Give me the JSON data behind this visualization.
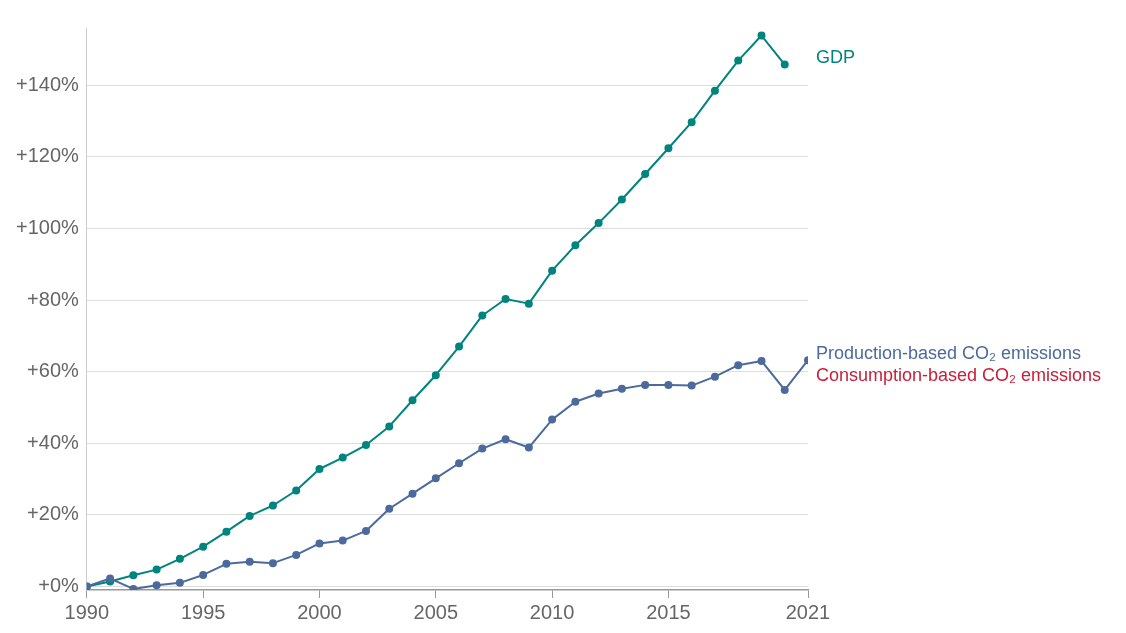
{
  "chart_data": {
    "type": "line",
    "x": [
      1990,
      1991,
      1992,
      1993,
      1994,
      1995,
      1996,
      1997,
      1998,
      1999,
      2000,
      2001,
      2002,
      2003,
      2004,
      2005,
      2006,
      2007,
      2008,
      2009,
      2010,
      2011,
      2012,
      2013,
      2014,
      2015,
      2016,
      2017,
      2018,
      2019,
      2020,
      2021
    ],
    "series": [
      {
        "name": "GDP",
        "color": "#00847e",
        "values": [
          0,
          1.4,
          3.1,
          4.7,
          7.7,
          11.1,
          15.3,
          19.7,
          22.6,
          26.8,
          32.8,
          36.0,
          39.5,
          44.7,
          52.0,
          59.0,
          67.0,
          75.7,
          80.3,
          79.0,
          88.2,
          95.3,
          101.5,
          108.1,
          115.2,
          122.4,
          129.7,
          138.5,
          146.9,
          153.9,
          145.8,
          null
        ]
      },
      {
        "name": "Production-based CO₂ emissions",
        "color": "#4c6a9c",
        "values": [
          0,
          2.2,
          -0.7,
          0.3,
          1.0,
          3.2,
          6.3,
          6.9,
          6.5,
          8.8,
          12.0,
          12.8,
          15.5,
          21.7,
          25.9,
          30.2,
          34.4,
          38.5,
          41.1,
          38.8,
          46.6,
          51.6,
          53.9,
          55.2,
          56.3,
          56.3,
          56.1,
          58.6,
          61.8,
          63.0,
          54.9,
          63.2
        ]
      },
      {
        "name": "Consumption-based CO₂ emissions",
        "color": "#c8203a",
        "values": [
          null,
          null,
          null,
          null,
          null,
          null,
          null,
          null,
          null,
          null,
          null,
          null,
          null,
          null,
          null,
          null,
          null,
          null,
          null,
          null,
          null,
          null,
          null,
          null,
          null,
          null,
          null,
          null,
          null,
          null,
          null,
          null
        ]
      }
    ],
    "xlim": [
      1990,
      2021
    ],
    "xticks": [
      1990,
      1995,
      2000,
      2005,
      2010,
      2015,
      2021
    ],
    "ylim": [
      -1,
      156
    ],
    "yticks": [
      {
        "value": 0,
        "label": "+0%"
      },
      {
        "value": 20,
        "label": "+20%"
      },
      {
        "value": 40,
        "label": "+40%"
      },
      {
        "value": 60,
        "label": "+60%"
      },
      {
        "value": 80,
        "label": "+80%"
      },
      {
        "value": 100,
        "label": "+100%"
      },
      {
        "value": 120,
        "label": "+120%"
      },
      {
        "value": 140,
        "label": "+140%"
      }
    ],
    "grid": "y",
    "legend": "right",
    "marker": "circle",
    "line_style": "solid"
  }
}
